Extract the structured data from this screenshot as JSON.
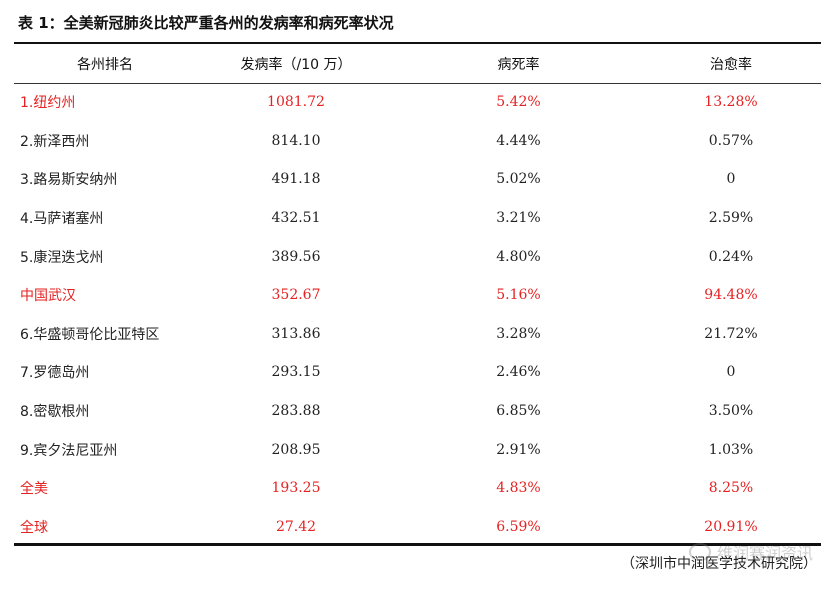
{
  "title": "表 1：全美新冠肺炎比较严重各州的发病率和病死率状况",
  "columns": [
    "各州排名",
    "发病率（/10 万）",
    "病死率",
    "治愈率"
  ],
  "rows": [
    {
      "name": "1.纽约州",
      "incidence": "1081.72",
      "fatality": "5.42%",
      "cure": "13.28%",
      "highlight": true
    },
    {
      "name": "2.新泽西州",
      "incidence": "814.10",
      "fatality": "4.44%",
      "cure": "0.57%",
      "highlight": false
    },
    {
      "name": "3.路易斯安纳州",
      "incidence": "491.18",
      "fatality": "5.02%",
      "cure": "0",
      "highlight": false
    },
    {
      "name": "4.马萨诸塞州",
      "incidence": "432.51",
      "fatality": "3.21%",
      "cure": "2.59%",
      "highlight": false
    },
    {
      "name": "5.康涅迭戈州",
      "incidence": "389.56",
      "fatality": "4.80%",
      "cure": "0.24%",
      "highlight": false
    },
    {
      "name": "中国武汉",
      "incidence": "352.67",
      "fatality": "5.16%",
      "cure": "94.48%",
      "highlight": true
    },
    {
      "name": "6.华盛顿哥伦比亚特区",
      "incidence": "313.86",
      "fatality": "3.28%",
      "cure": "21.72%",
      "highlight": false
    },
    {
      "name": "7.罗德岛州",
      "incidence": "293.15",
      "fatality": "2.46%",
      "cure": "0",
      "highlight": false
    },
    {
      "name": "8.密歇根州",
      "incidence": "283.88",
      "fatality": "6.85%",
      "cure": "3.50%",
      "highlight": false
    },
    {
      "name": "9.宾夕法尼亚州",
      "incidence": "208.95",
      "fatality": "2.91%",
      "cure": "1.03%",
      "highlight": false
    },
    {
      "name": "全美",
      "incidence": "193.25",
      "fatality": "4.83%",
      "cure": "8.25%",
      "highlight": true
    },
    {
      "name": "全球",
      "incidence": "27.42",
      "fatality": "6.59%",
      "cure": "20.91%",
      "highlight": true
    }
  ],
  "source": "（深圳市中润医学技术研究院）",
  "watermark": "维润赛润资讯",
  "colors": {
    "highlight": "#e52222",
    "text": "#222222"
  },
  "icons": {
    "watermark": "wechat-icon"
  }
}
